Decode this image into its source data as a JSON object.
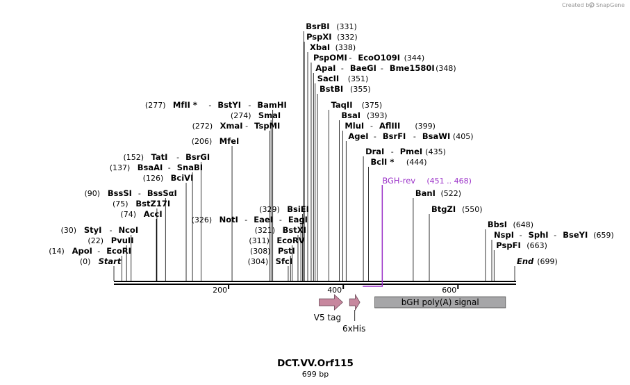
{
  "credit": {
    "prefix": "Created by",
    "brand": "SnapGene"
  },
  "map": {
    "name": "DCT.VV.Orf115",
    "length_label": "699 bp",
    "length_bp": 699
  },
  "axis": {
    "ticks": [
      200,
      400,
      600
    ]
  },
  "colors": {
    "primer": "#9b32c8",
    "arrow": "#c7879e",
    "box": "#a6a6a8",
    "line": "#000000"
  },
  "sites": [
    {
      "bp": 0,
      "pos": "(0)",
      "names": [
        "Start"
      ],
      "italic": true
    },
    {
      "bp": 14,
      "pos": "(14)",
      "names": [
        "ApoI",
        "EcoRI"
      ]
    },
    {
      "bp": 22,
      "pos": "(22)",
      "names": [
        "PvuII"
      ]
    },
    {
      "bp": 30,
      "pos": "(30)",
      "names": [
        "StyI",
        "NcoI"
      ]
    },
    {
      "bp": 74,
      "pos": "(74)",
      "names": [
        "AccI"
      ]
    },
    {
      "bp": 75,
      "pos": "(75)",
      "names": [
        "BstZ17I"
      ]
    },
    {
      "bp": 90,
      "pos": "(90)",
      "names": [
        "BssSI",
        "BssSαI"
      ]
    },
    {
      "bp": 126,
      "pos": "(126)",
      "names": [
        "BciVI"
      ]
    },
    {
      "bp": 137,
      "pos": "(137)",
      "names": [
        "BsaAI",
        "SnaBI"
      ]
    },
    {
      "bp": 152,
      "pos": "(152)",
      "names": [
        "TatI",
        "BsrGI"
      ]
    },
    {
      "bp": 206,
      "pos": "(206)",
      "names": [
        "MfeI"
      ]
    },
    {
      "bp": 272,
      "pos": "(272)",
      "names": [
        "XmaI",
        "TspMI"
      ]
    },
    {
      "bp": 274,
      "pos": "(274)",
      "names": [
        "SmaI"
      ]
    },
    {
      "bp": 277,
      "pos": "(277)",
      "names": [
        "MfII *",
        "BstYI",
        "BamHI"
      ]
    },
    {
      "bp": 304,
      "pos": "(304)",
      "names": [
        "SfcI"
      ]
    },
    {
      "bp": 308,
      "pos": "(308)",
      "names": [
        "PstI"
      ]
    },
    {
      "bp": 311,
      "pos": "(311)",
      "names": [
        "EcoRV"
      ]
    },
    {
      "bp": 321,
      "pos": "(321)",
      "names": [
        "BstXI"
      ]
    },
    {
      "bp": 326,
      "pos": "(326)",
      "names": [
        "NotI",
        "EaeI",
        "EagI"
      ]
    },
    {
      "bp": 329,
      "pos": "(329)",
      "names": [
        "BsiEI"
      ]
    },
    {
      "bp": 331,
      "pos": "(331)",
      "names": [
        "BsrBI"
      ]
    },
    {
      "bp": 332,
      "pos": "(332)",
      "names": [
        "PspXI"
      ]
    },
    {
      "bp": 338,
      "pos": "(338)",
      "names": [
        "XbaI"
      ]
    },
    {
      "bp": 344,
      "pos": "(344)",
      "names": [
        "PspOMI",
        "EcoO109I"
      ]
    },
    {
      "bp": 348,
      "pos": "(348)",
      "names": [
        "ApaI",
        "BaeGI",
        "Bme1580I"
      ]
    },
    {
      "bp": 351,
      "pos": "(351)",
      "names": [
        "SacII"
      ]
    },
    {
      "bp": 355,
      "pos": "(355)",
      "names": [
        "BstBI"
      ]
    },
    {
      "bp": 375,
      "pos": "(375)",
      "names": [
        "TaqII"
      ]
    },
    {
      "bp": 393,
      "pos": "(393)",
      "names": [
        "BsaI"
      ]
    },
    {
      "bp": 399,
      "pos": "(399)",
      "names": [
        "MluI",
        "AflIII"
      ]
    },
    {
      "bp": 405,
      "pos": "(405)",
      "names": [
        "AgeI",
        "BsrFI",
        "BsaWI"
      ]
    },
    {
      "bp": 435,
      "pos": "(435)",
      "names": [
        "DraI",
        "PmeI"
      ]
    },
    {
      "bp": 444,
      "pos": "(444)",
      "names": [
        "BclI *"
      ]
    },
    {
      "bp": 522,
      "pos": "(522)",
      "names": [
        "BanI"
      ]
    },
    {
      "bp": 550,
      "pos": "(550)",
      "names": [
        "BtgZI"
      ]
    },
    {
      "bp": 648,
      "pos": "(648)",
      "names": [
        "BbsI"
      ]
    },
    {
      "bp": 659,
      "pos": "(659)",
      "names": [
        "NspI",
        "SphI",
        "BseYI"
      ]
    },
    {
      "bp": 663,
      "pos": "(663)",
      "names": [
        "PspFI"
      ]
    },
    {
      "bp": 699,
      "pos": "(699)",
      "names": [
        "End"
      ],
      "italic": true
    }
  ],
  "primer": {
    "name": "BGH-rev",
    "range": "(451 .. 468)",
    "start_bp": 451,
    "end_bp": 468
  },
  "features": [
    {
      "id": "v5",
      "label": "V5 tag",
      "start_bp": 358,
      "end_bp": 399,
      "shape": "arrow"
    },
    {
      "id": "his",
      "label": "6xHis",
      "start_bp": 411,
      "end_bp": 429,
      "shape": "arrow"
    },
    {
      "id": "bgh",
      "label": "bGH poly(A) signal",
      "start_bp": 455,
      "end_bp": 683,
      "shape": "box"
    }
  ]
}
